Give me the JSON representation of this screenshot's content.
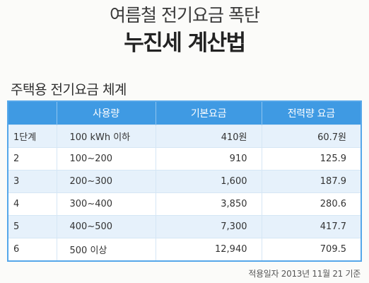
{
  "header": {
    "subtitle": "여름철 전기요금 폭탄",
    "title": "누진세 계산법"
  },
  "section_title": "주택용 전기요금 체계",
  "table": {
    "columns": [
      "",
      "사용량",
      "기본요금",
      "전력량 요금"
    ],
    "rows": [
      {
        "tier": "1단계",
        "usage": "100 kWh 이하",
        "base": "410원",
        "energy": "60.7원"
      },
      {
        "tier": "2",
        "usage": "100~200",
        "base": "910",
        "energy": "125.9"
      },
      {
        "tier": "3",
        "usage": "200~300",
        "base": "1,600",
        "energy": "187.9"
      },
      {
        "tier": "4",
        "usage": "300~400",
        "base": "3,850",
        "energy": "280.6"
      },
      {
        "tier": "5",
        "usage": "400~500",
        "base": "7,300",
        "energy": "417.7"
      },
      {
        "tier": "6",
        "usage": "500 이상",
        "base": "12,940",
        "energy": "709.5"
      }
    ]
  },
  "footnote": "적용일자 2013년 11월 21 기준",
  "colors": {
    "header_blue": "#3f9ae3",
    "row_tint": "#e6f1fb",
    "border_blue": "#55a7ea"
  }
}
